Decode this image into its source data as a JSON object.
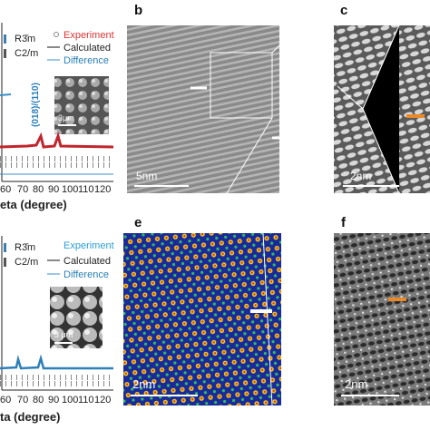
{
  "top_left": {
    "legend_phases": [
      "R3̄m",
      "C2/m"
    ],
    "legend_lines": [
      "Experiment",
      "Calculated",
      "Difference"
    ],
    "inset_scale": "3μm",
    "peak_label": "(018)/(110)",
    "xtick_labels": [
      "60",
      "70",
      "80",
      "90",
      "100",
      "110",
      "120"
    ],
    "xlabel": "eta (degree)"
  },
  "panel_b": {
    "letter": "b",
    "scale": "5nm"
  },
  "panel_c": {
    "letter": "c",
    "scale": "2nm"
  },
  "bottom_left": {
    "legend_phases": [
      "R3̄m",
      "C2/m"
    ],
    "legend_lines": [
      "Experiment",
      "Calculated",
      "Difference"
    ],
    "inset_scale": "3 μm",
    "xtick_labels": [
      "60",
      "70",
      "80",
      "90",
      "100",
      "110",
      "120"
    ],
    "xlabel": "ta (degree)"
  },
  "panel_e": {
    "letter": "e",
    "scale": "2nm"
  },
  "panel_f": {
    "letter": "f",
    "scale": "2nm"
  }
}
